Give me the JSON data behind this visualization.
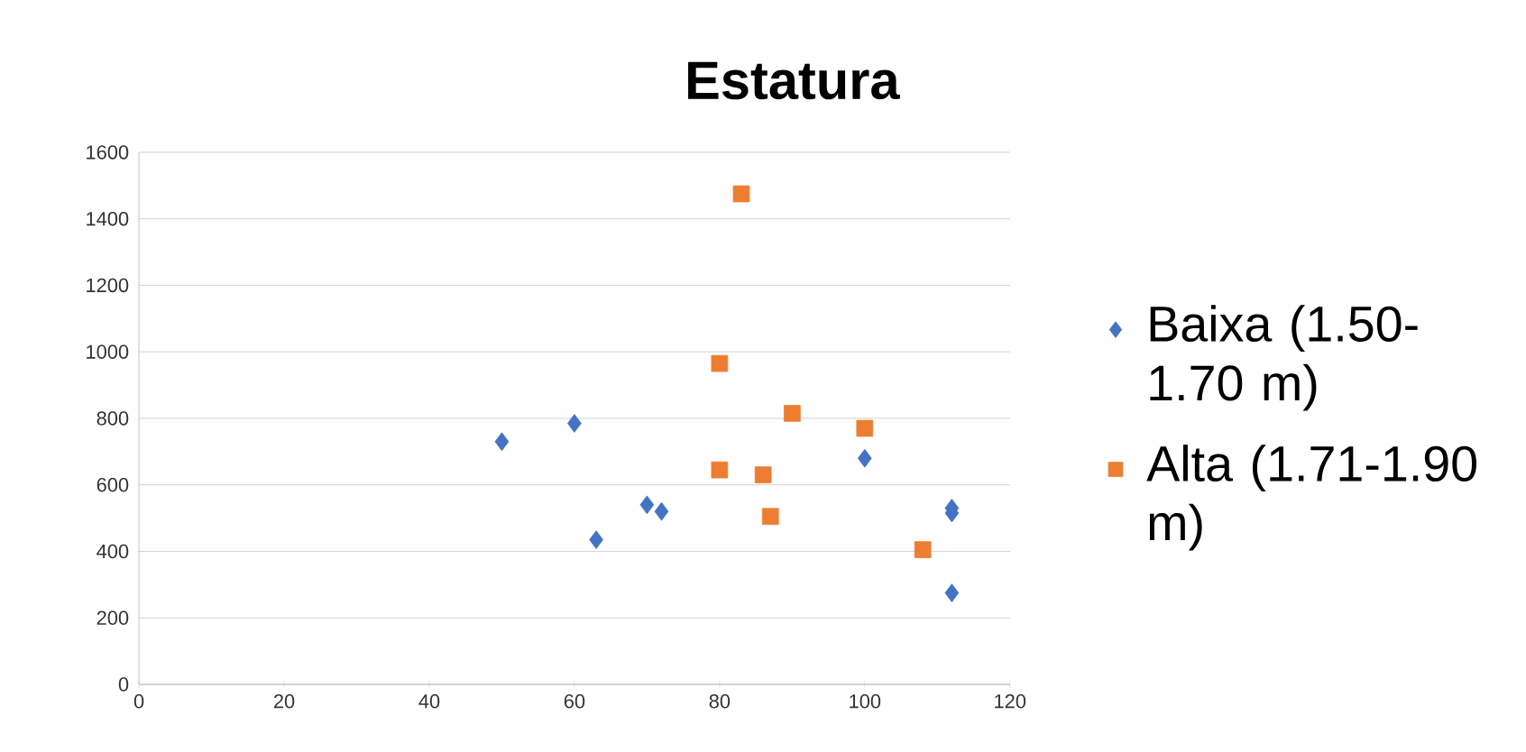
{
  "chart_data": {
    "type": "scatter",
    "title": "Estatura",
    "xlim": [
      0,
      120
    ],
    "xticks": [
      0,
      20,
      40,
      60,
      80,
      100,
      120
    ],
    "ylim": [
      0,
      1600
    ],
    "yticks": [
      0,
      200,
      400,
      600,
      800,
      1000,
      1200,
      1400,
      1600
    ],
    "grid": "y",
    "legend": "right",
    "series": [
      {
        "name": "Baixa (1.50-1.70 m)",
        "color": "#4472c4",
        "marker": "diamond",
        "x": [
          50,
          60,
          63,
          70,
          72,
          100,
          112,
          112,
          112
        ],
        "values": [
          730,
          785,
          435,
          540,
          520,
          680,
          530,
          515,
          275
        ]
      },
      {
        "name": "Alta (1.71-1.90 m)",
        "color": "#ed7d31",
        "marker": "square",
        "x": [
          83,
          80,
          90,
          100,
          80,
          86,
          87,
          108
        ],
        "values": [
          1475,
          965,
          815,
          770,
          645,
          630,
          505,
          405
        ]
      }
    ]
  }
}
